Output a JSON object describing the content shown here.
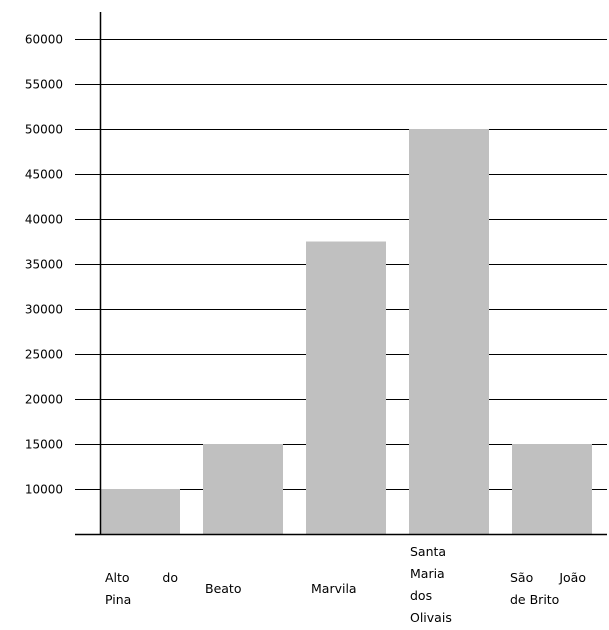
{
  "chart_data": {
    "type": "bar",
    "title": "",
    "xlabel": "",
    "ylabel": "",
    "categories": [
      "Alto do Pina",
      "Beato",
      "Marvila",
      "Santa Maria dos Olivais",
      "São João de Brito"
    ],
    "category_label_lines": [
      [
        "Alto",
        "do",
        "Pina"
      ],
      [
        "Beato"
      ],
      [
        "Marvila"
      ],
      [
        "Santa",
        "Maria",
        "dos",
        "Olivais"
      ],
      [
        "São",
        "João",
        "de Brito"
      ]
    ],
    "values": [
      10000,
      15000,
      37500,
      50000,
      15000
    ],
    "ylim": [
      5000,
      60000
    ],
    "yticks": [
      10000,
      15000,
      20000,
      25000,
      30000,
      35000,
      40000,
      45000,
      50000,
      55000,
      60000
    ],
    "ytick_labels": [
      "10000",
      "15000",
      "20000",
      "25000",
      "30000",
      "35000",
      "40000",
      "45000",
      "50000",
      "55000",
      "60000"
    ],
    "grid": true,
    "legend": "none",
    "colors": {
      "bar": "#c0c0c0",
      "grid": "#000000",
      "axis": "#000000"
    }
  }
}
